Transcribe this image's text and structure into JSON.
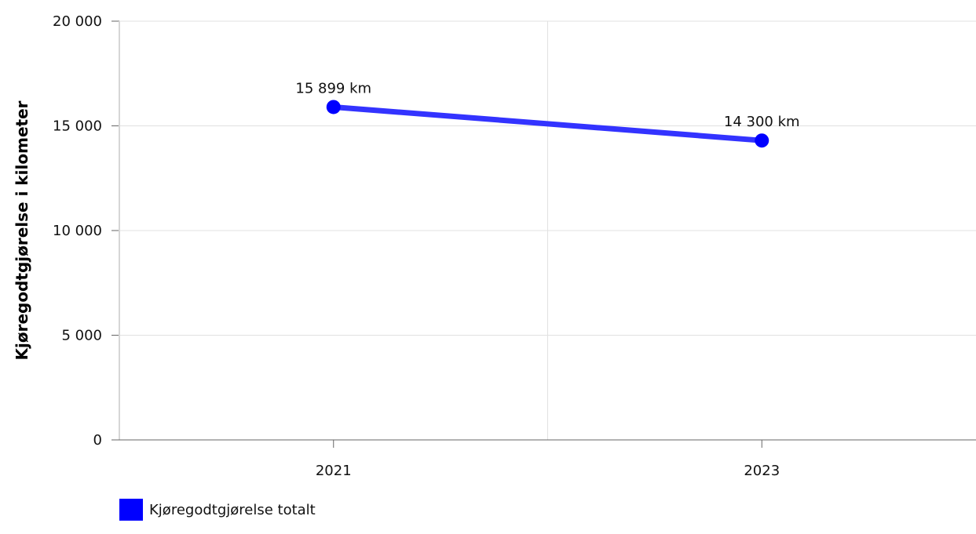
{
  "chart_data": {
    "type": "line",
    "title": "",
    "xlabel": "",
    "ylabel": "Kjøregodtgjørelse i kilometer",
    "categories": [
      "2021",
      "2023"
    ],
    "series": [
      {
        "name": "Kjøregodtgjørelse totalt",
        "values": [
          15899,
          14300
        ],
        "data_labels": [
          "15 899 km",
          "14 300 km"
        ],
        "color": "#3333ff",
        "marker_color": "#0000ff"
      }
    ],
    "ylim": [
      0,
      20000
    ],
    "yticks": [
      0,
      5000,
      10000,
      15000,
      20000
    ],
    "ytick_labels": [
      "0",
      "5 000",
      "10 000",
      "15 000",
      "20 000"
    ],
    "grid": true,
    "legend_position": "bottom-left"
  }
}
